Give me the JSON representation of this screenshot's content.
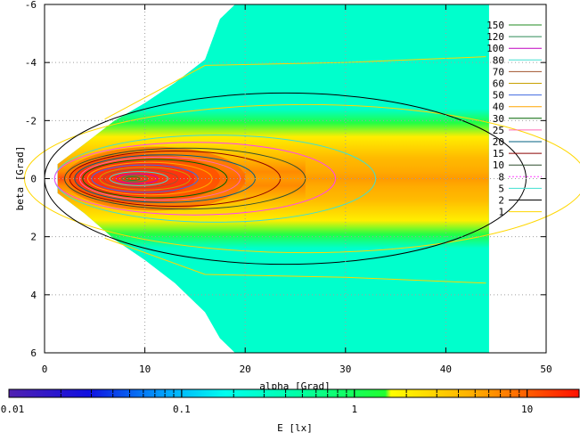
{
  "chart_data": {
    "type": "heatmap",
    "xlabel": "alpha [Grad]",
    "ylabel": "beta [Grad]",
    "colorbar_label": "E [lx]",
    "xlim": [
      0,
      50
    ],
    "ylim": [
      -6,
      6
    ],
    "y_axis_inverted": true,
    "x_ticks": [
      "0",
      "10",
      "20",
      "30",
      "40",
      "50"
    ],
    "y_ticks": [
      "-6",
      "-4",
      "-2",
      "0",
      "2",
      "4",
      "6"
    ],
    "colorbar": {
      "scale": "log",
      "range": [
        0.01,
        20
      ],
      "ticks": [
        "0.01",
        "0.1",
        "1",
        "10"
      ]
    },
    "grid": true,
    "legend_position": "top-right",
    "contour_levels": [
      {
        "label": "150",
        "color": "#228B22"
      },
      {
        "label": "120",
        "color": "#2E8B57"
      },
      {
        "label": "100",
        "color": "#C000C0"
      },
      {
        "label": "80",
        "color": "#40E0D0"
      },
      {
        "label": "70",
        "color": "#A0522D"
      },
      {
        "label": "60",
        "color": "#C8A000"
      },
      {
        "label": "50",
        "color": "#4169E1"
      },
      {
        "label": "40",
        "color": "#FFA500"
      },
      {
        "label": "30",
        "color": "#006400"
      },
      {
        "label": "25",
        "color": "#FF69B4"
      },
      {
        "label": "20",
        "color": "#006080"
      },
      {
        "label": "15",
        "color": "#8B0000"
      },
      {
        "label": "10",
        "color": "#2F4F2F"
      },
      {
        "label": "8",
        "color": "#FF40FF"
      },
      {
        "label": "5",
        "color": "#40E0D0"
      },
      {
        "label": "2",
        "color": "#000000"
      },
      {
        "label": "1",
        "color": "#FFD700"
      }
    ]
  }
}
